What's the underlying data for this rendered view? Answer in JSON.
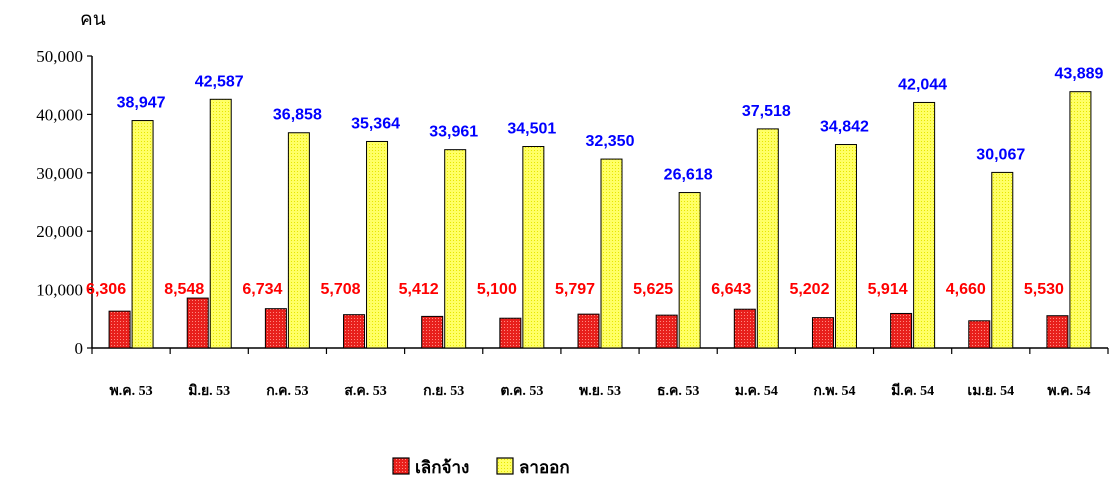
{
  "colors": {
    "terminated": "#e8201c",
    "resigned": "#ffff66",
    "terminated_label": "#ff0000",
    "resigned_label": "#0000ff"
  },
  "chart_data": {
    "type": "bar",
    "ylabel": "คน",
    "ylim": [
      0,
      50000
    ],
    "yticks": [
      "0",
      "10,000",
      "20,000",
      "30,000",
      "40,000",
      "50,000"
    ],
    "grid": false,
    "legend_position": "bottom-center",
    "categories": [
      "พ.ค. 53",
      "มิ.ย. 53",
      "ก.ค. 53",
      "ส.ค. 53",
      "ก.ย. 53",
      "ต.ค. 53",
      "พ.ย. 53",
      "ธ.ค. 53",
      "ม.ค. 54",
      "ก.พ. 54",
      "มี.ค. 54",
      "เม.ย. 54",
      "พ.ค. 54"
    ],
    "series": [
      {
        "name": "เลิกจ้าง",
        "values": [
          6306,
          8548,
          6734,
          5708,
          5412,
          5100,
          5797,
          5625,
          6643,
          5202,
          5914,
          4660,
          5530
        ],
        "labels": [
          "6,306",
          "8,548",
          "6,734",
          "5,708",
          "5,412",
          "5,100",
          "5,797",
          "5,625",
          "6,643",
          "5,202",
          "5,914",
          "4,660",
          "5,530"
        ]
      },
      {
        "name": "ลาออก",
        "values": [
          38947,
          42587,
          36858,
          35364,
          33961,
          34501,
          32350,
          26618,
          37518,
          34842,
          42044,
          30067,
          43889
        ],
        "labels": [
          "38,947",
          "42,587",
          "36,858",
          "35,364",
          "33,961",
          "34,501",
          "32,350",
          "26,618",
          "37,518",
          "34,842",
          "42,044",
          "30,067",
          "43,889"
        ]
      }
    ]
  }
}
